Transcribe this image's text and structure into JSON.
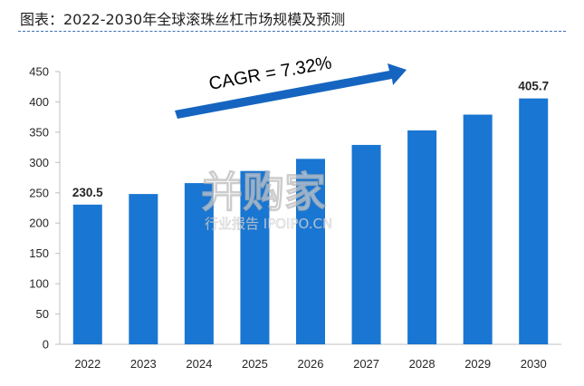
{
  "header": {
    "title": "图表：2022-2030年全球滚珠丝杠市场规模及预测"
  },
  "annotation": {
    "cagr": "CAGR = 7.32%"
  },
  "watermark": {
    "brand": "并购家",
    "sub": "行业报告 IPOIPO.CN"
  },
  "colors": {
    "bar": "#1976D2",
    "arrow": "#1565C0",
    "axis": "#bfbfbf"
  },
  "chart_data": {
    "type": "bar",
    "title": "2022-2030年全球滚珠丝杠市场规模及预测",
    "categories": [
      "2022",
      "2023",
      "2024",
      "2025",
      "2026",
      "2027",
      "2028",
      "2029",
      "2030"
    ],
    "values": [
      230.5,
      248,
      266,
      286,
      306,
      329,
      353,
      379,
      405.7
    ],
    "data_labels": {
      "2022": "230.5",
      "2030": "405.7"
    },
    "yticks": [
      0,
      50,
      100,
      150,
      200,
      250,
      300,
      350,
      400,
      450
    ],
    "ylim": [
      0,
      450
    ],
    "xlabel": "",
    "ylabel": "",
    "grid": false,
    "legend": false
  }
}
